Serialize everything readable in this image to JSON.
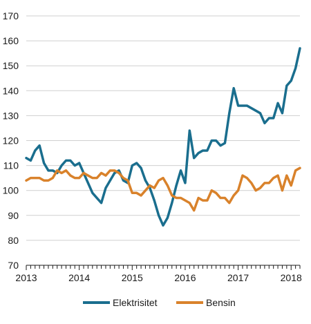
{
  "chart_data": {
    "type": "line",
    "title": "",
    "xlabel": "",
    "ylabel": "",
    "ylim": [
      70,
      170
    ],
    "xlim": [
      "2013-01",
      "2018-02"
    ],
    "yticks": [
      70,
      80,
      90,
      100,
      110,
      120,
      130,
      140,
      150,
      160,
      170
    ],
    "xtick_labels": [
      "2013",
      "2014",
      "2015",
      "2016",
      "2017",
      "2018"
    ],
    "grid": "horizontal",
    "legend_position": "bottom",
    "colors": {
      "Elektrisitet": "#1a6e8e",
      "Bensin": "#d9822b"
    },
    "series": [
      {
        "name": "Elektrisitet",
        "values": [
          113,
          112,
          116,
          118,
          111,
          108,
          108,
          107,
          110,
          112,
          112,
          110,
          111,
          107,
          103,
          99,
          97,
          95,
          101,
          104,
          107,
          108,
          104,
          103,
          110,
          111,
          109,
          104,
          101,
          96,
          90,
          86,
          89,
          95,
          102,
          108,
          103,
          124,
          113,
          115,
          116,
          116,
          120,
          120,
          118,
          119,
          131,
          141,
          134,
          134,
          134,
          133,
          132,
          131,
          127,
          129,
          129,
          135,
          131,
          142,
          144,
          149,
          157
        ]
      },
      {
        "name": "Bensin",
        "values": [
          104,
          105,
          105,
          105,
          104,
          104,
          105,
          108,
          107,
          108,
          106,
          105,
          105,
          107,
          106,
          105,
          105,
          107,
          106,
          108,
          108,
          107,
          105,
          104,
          99,
          99,
          98,
          100,
          102,
          101,
          104,
          105,
          102,
          98,
          97,
          97,
          96,
          95,
          92,
          97,
          96,
          96,
          100,
          99,
          97,
          97,
          95,
          98,
          100,
          106,
          105,
          103,
          100,
          101,
          103,
          103,
          105,
          106,
          100,
          106,
          102,
          108,
          109
        ]
      }
    ]
  }
}
